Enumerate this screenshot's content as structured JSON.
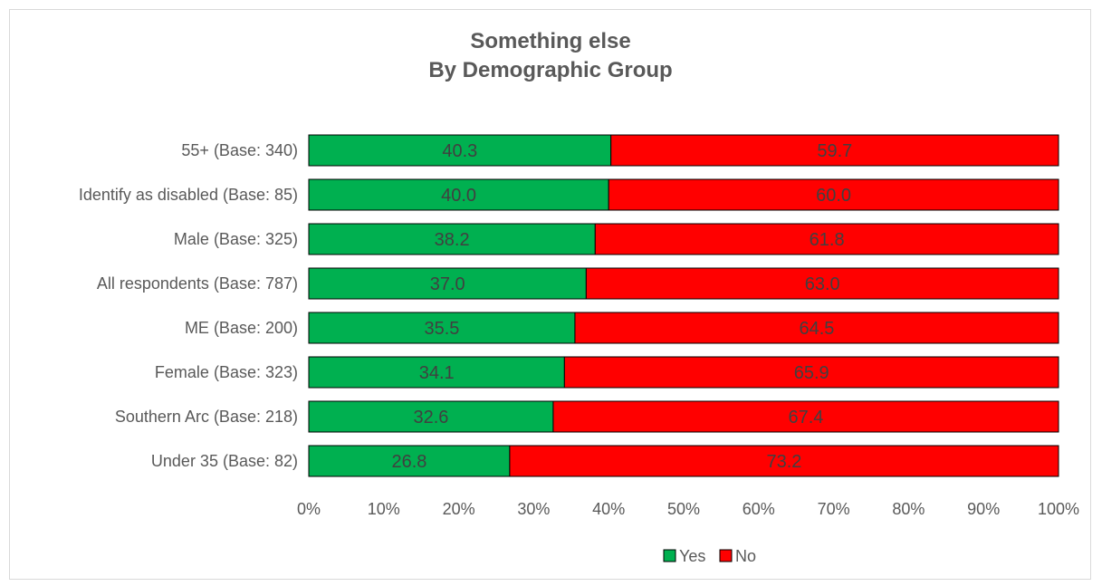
{
  "chart_data": {
    "type": "bar",
    "orientation": "horizontal",
    "stacked": "percent",
    "title": "Something else",
    "subtitle": "By Demographic Group",
    "xlabel": "",
    "ylabel": "",
    "xlim": [
      0,
      100
    ],
    "x_ticks": [
      "0%",
      "10%",
      "20%",
      "30%",
      "40%",
      "50%",
      "60%",
      "70%",
      "80%",
      "90%",
      "100%"
    ],
    "grid": false,
    "legend_position": "bottom",
    "categories": [
      "55+ (Base: 340)",
      "Identify as disabled (Base: 85)",
      "Male (Base: 325)",
      "All respondents (Base: 787)",
      "ME (Base: 200)",
      "Female (Base: 323)",
      "Southern Arc (Base: 218)",
      "Under 35 (Base: 82)"
    ],
    "series": [
      {
        "name": "Yes",
        "color": "#00b050",
        "values": [
          40.3,
          40.0,
          38.2,
          37.0,
          35.5,
          34.1,
          32.6,
          26.8
        ],
        "labels": [
          "40.3",
          "40.0",
          "38.2",
          "37.0",
          "35.5",
          "34.1",
          "32.6",
          "26.8"
        ]
      },
      {
        "name": "No",
        "color": "#ff0000",
        "values": [
          59.7,
          60.0,
          61.8,
          63.0,
          64.5,
          65.9,
          67.4,
          73.2
        ],
        "labels": [
          "59.7",
          "60.0",
          "61.8",
          "63.0",
          "64.5",
          "65.9",
          "67.4",
          "73.2"
        ]
      }
    ]
  }
}
